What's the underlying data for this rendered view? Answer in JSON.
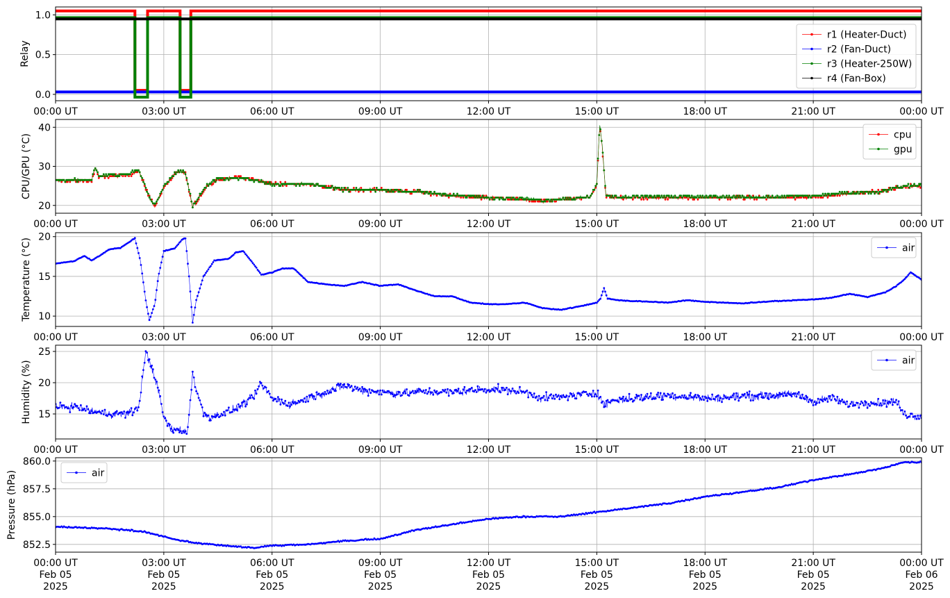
{
  "chart_data": [
    {
      "type": "line",
      "ylabel": "Relay",
      "ylim": [
        -0.08,
        1.1
      ],
      "yticks": [
        "0.0",
        "0.5",
        "1.0"
      ],
      "ytick_values": [
        0,
        0.5,
        1.0
      ],
      "xticks": [
        "00:00 UT",
        "03:00 UT",
        "06:00 UT",
        "09:00 UT",
        "12:00 UT",
        "15:00 UT",
        "18:00 UT",
        "21:00 UT",
        "00:00 UT"
      ],
      "grid": true,
      "legend_position": "upper-right",
      "series": [
        {
          "name": "r1 (Heater-Duct)",
          "color": "#ff0000",
          "offset": 0.05,
          "segments": [
            [
              0,
              1
            ],
            [
              2.2,
              1
            ],
            [
              2.2,
              0
            ],
            [
              2.55,
              0
            ],
            [
              2.55,
              1
            ],
            [
              3.45,
              1
            ],
            [
              3.45,
              0
            ],
            [
              3.75,
              0
            ],
            [
              3.75,
              1
            ],
            [
              24,
              1
            ]
          ]
        },
        {
          "name": "r2 (Fan-Duct)",
          "color": "#0000ff",
          "offset": 0.03,
          "segments": [
            [
              0,
              0
            ],
            [
              24,
              0
            ]
          ]
        },
        {
          "name": "r3 (Heater-250W)",
          "color": "#008000",
          "offset": -0.035,
          "segments": [
            [
              0,
              1
            ],
            [
              2.2,
              1
            ],
            [
              2.2,
              0
            ],
            [
              2.55,
              0
            ],
            [
              2.55,
              1
            ],
            [
              3.45,
              1
            ],
            [
              3.45,
              0
            ],
            [
              3.75,
              0
            ],
            [
              3.75,
              1
            ],
            [
              24,
              1
            ]
          ]
        },
        {
          "name": "r4 (Fan-Box)",
          "color": "#000000",
          "offset": -0.05,
          "segments": [
            [
              0,
              1
            ],
            [
              24,
              1
            ]
          ]
        }
      ]
    },
    {
      "type": "line",
      "ylabel": "CPU/GPU (°C)",
      "ylim": [
        18,
        42
      ],
      "yticks": [
        "20",
        "30",
        "40"
      ],
      "ytick_values": [
        20,
        30,
        40
      ],
      "xticks": [
        "00:00 UT",
        "03:00 UT",
        "06:00 UT",
        "09:00 UT",
        "12:00 UT",
        "15:00 UT",
        "18:00 UT",
        "21:00 UT",
        "00:00 UT"
      ],
      "grid": true,
      "legend_position": "upper-right",
      "series": [
        {
          "name": "cpu",
          "color": "#ff0000",
          "noise": 0.5,
          "x": [
            0,
            1.0,
            1.1,
            1.2,
            2.0,
            2.3,
            2.6,
            2.75,
            3.0,
            3.3,
            3.5,
            3.6,
            3.8,
            4.2,
            4.5,
            5.0,
            5.5,
            6.0,
            6.5,
            7.0,
            8.0,
            9.0,
            10.0,
            11.0,
            12.0,
            13.0,
            13.5,
            14.0,
            14.8,
            15.0,
            15.08,
            15.15,
            15.25,
            15.4,
            16.0,
            18.0,
            20.0,
            21.0,
            22.0,
            22.8,
            23.5,
            24.0
          ],
          "y": [
            26.3,
            26.3,
            29.5,
            27.2,
            27.8,
            28.9,
            22.0,
            19.8,
            24.5,
            28.0,
            28.8,
            28.0,
            19.5,
            25.0,
            26.5,
            27.2,
            26.7,
            25.5,
            25.5,
            25.5,
            24.0,
            24.0,
            23.5,
            22.5,
            22.0,
            21.5,
            21.0,
            21.5,
            22.0,
            25.0,
            40.5,
            35.0,
            22.5,
            22.0,
            22.0,
            22.0,
            22.0,
            22.2,
            23.0,
            23.5,
            24.8,
            25.0
          ]
        },
        {
          "name": "gpu",
          "color": "#008000",
          "noise": 0.4,
          "x": [
            0,
            1.0,
            1.1,
            1.2,
            2.0,
            2.3,
            2.6,
            2.75,
            3.0,
            3.3,
            3.5,
            3.6,
            3.8,
            4.2,
            4.5,
            5.0,
            5.5,
            6.0,
            6.5,
            7.0,
            8.0,
            9.0,
            10.0,
            11.0,
            12.0,
            13.0,
            13.5,
            14.0,
            14.8,
            15.0,
            15.08,
            15.15,
            15.25,
            15.4,
            16.0,
            18.0,
            20.0,
            21.0,
            22.0,
            22.8,
            23.5,
            24.0
          ],
          "y": [
            26.5,
            26.5,
            29.8,
            27.5,
            28.0,
            29.1,
            22.3,
            20.0,
            24.8,
            28.2,
            29.0,
            28.3,
            19.7,
            25.3,
            26.8,
            27.0,
            26.5,
            25.3,
            25.5,
            25.5,
            24.0,
            24.0,
            23.5,
            22.6,
            22.0,
            21.8,
            21.3,
            21.6,
            22.2,
            25.3,
            40.8,
            35.5,
            22.7,
            22.2,
            22.2,
            22.2,
            22.2,
            22.4,
            23.2,
            23.5,
            25.0,
            25.2
          ]
        }
      ]
    },
    {
      "type": "line",
      "ylabel": "Temperature (°C)",
      "ylim": [
        8.7,
        20.5
      ],
      "yticks": [
        "10",
        "15",
        "20"
      ],
      "ytick_values": [
        10,
        15,
        20
      ],
      "xticks": [
        "00:00 UT",
        "03:00 UT",
        "06:00 UT",
        "09:00 UT",
        "12:00 UT",
        "15:00 UT",
        "18:00 UT",
        "21:00 UT",
        "00:00 UT"
      ],
      "grid": true,
      "legend_position": "upper-right",
      "series": [
        {
          "name": "air",
          "color": "#0000ff",
          "noise": 0.05,
          "x": [
            0,
            0.3,
            0.5,
            0.8,
            1.0,
            1.5,
            1.8,
            2.2,
            2.35,
            2.5,
            2.6,
            2.75,
            2.85,
            3.0,
            3.3,
            3.5,
            3.6,
            3.7,
            3.8,
            3.9,
            4.1,
            4.4,
            4.8,
            5.0,
            5.2,
            5.5,
            5.7,
            6.0,
            6.3,
            6.6,
            7.0,
            7.5,
            8.0,
            8.5,
            9.0,
            9.5,
            10.0,
            10.5,
            11.0,
            11.5,
            12.0,
            12.5,
            13.0,
            13.5,
            14.0,
            14.5,
            15.0,
            15.1,
            15.2,
            15.3,
            15.6,
            16.0,
            17.0,
            17.5,
            18.0,
            19.0,
            20.0,
            21.0,
            21.5,
            22.0,
            22.5,
            23.0,
            23.3,
            23.5,
            23.7,
            24.0
          ],
          "y": [
            16.6,
            16.8,
            16.9,
            17.6,
            17.0,
            18.4,
            18.6,
            19.8,
            17.0,
            12.0,
            9.5,
            11.5,
            15.0,
            18.2,
            18.5,
            19.6,
            19.8,
            15.0,
            9.2,
            12.0,
            15.0,
            17.0,
            17.2,
            18.0,
            18.2,
            16.5,
            15.2,
            15.5,
            16.0,
            16.0,
            14.3,
            14.0,
            13.8,
            14.3,
            13.8,
            14.0,
            13.2,
            12.5,
            12.5,
            11.7,
            11.5,
            11.5,
            11.7,
            11.0,
            10.8,
            11.2,
            11.7,
            12.2,
            13.5,
            12.2,
            12.0,
            11.9,
            11.7,
            12.0,
            11.8,
            11.6,
            11.9,
            12.1,
            12.3,
            12.8,
            12.4,
            13.0,
            13.8,
            14.5,
            15.5,
            14.6
          ]
        }
      ]
    },
    {
      "type": "line",
      "ylabel": "Humidity (%)",
      "ylim": [
        11,
        26
      ],
      "yticks": [
        "15",
        "20",
        "25"
      ],
      "ytick_values": [
        15,
        20,
        25
      ],
      "xticks": [
        "00:00 UT",
        "03:00 UT",
        "06:00 UT",
        "09:00 UT",
        "12:00 UT",
        "15:00 UT",
        "18:00 UT",
        "21:00 UT",
        "00:00 UT"
      ],
      "grid": true,
      "legend_position": "upper-right",
      "series": [
        {
          "name": "air",
          "color": "#0000ff",
          "noise": 0.8,
          "x": [
            0,
            0.5,
            1.0,
            1.5,
            2.0,
            2.3,
            2.5,
            2.6,
            2.8,
            3.0,
            3.2,
            3.5,
            3.65,
            3.8,
            3.9,
            4.1,
            4.3,
            4.6,
            5.0,
            5.5,
            5.7,
            6.0,
            6.5,
            7.0,
            7.5,
            8.0,
            8.5,
            9.0,
            9.5,
            10.0,
            11.0,
            12.0,
            13.0,
            13.5,
            14.0,
            14.5,
            15.0,
            15.2,
            15.5,
            16.0,
            17.0,
            18.0,
            19.0,
            20.0,
            20.5,
            21.0,
            21.5,
            22.0,
            22.5,
            23.0,
            23.3,
            23.5,
            23.7,
            24.0
          ],
          "y": [
            16.0,
            16.2,
            15.5,
            15.0,
            15.0,
            16.0,
            24.8,
            23.5,
            20.0,
            14.5,
            12.5,
            12.5,
            11.8,
            21.5,
            19.0,
            15.0,
            14.5,
            15.0,
            15.8,
            17.8,
            19.8,
            17.5,
            16.5,
            17.5,
            18.5,
            19.5,
            18.8,
            18.5,
            18.3,
            18.5,
            18.5,
            19.0,
            18.5,
            17.5,
            17.8,
            18.0,
            18.5,
            16.5,
            17.2,
            17.5,
            18.0,
            17.5,
            17.8,
            18.0,
            18.2,
            17.0,
            17.5,
            16.5,
            16.8,
            16.8,
            17.0,
            15.0,
            14.8,
            14.5
          ]
        }
      ]
    },
    {
      "type": "line",
      "ylabel": "Pressure (hPa)",
      "ylim": [
        851.8,
        860.3
      ],
      "yticks": [
        "852.5",
        "855.0",
        "857.5",
        "860.0"
      ],
      "ytick_values": [
        852.5,
        855.0,
        857.5,
        860.0
      ],
      "xticks": [
        "00:00 UT\nFeb 05\n2025",
        "03:00 UT\nFeb 05\n2025",
        "06:00 UT\nFeb 05\n2025",
        "09:00 UT\nFeb 05\n2025",
        "12:00 UT\nFeb 05\n2025",
        "15:00 UT\nFeb 05\n2025",
        "18:00 UT\nFeb 05\n2025",
        "21:00 UT\nFeb 05\n2025",
        "00:00 UT\nFeb 06\n2025"
      ],
      "grid": true,
      "legend_position": "upper-left",
      "series": [
        {
          "name": "air",
          "color": "#0000ff",
          "noise": 0.08,
          "x": [
            0,
            1.5,
            2.0,
            2.5,
            3.0,
            3.5,
            4.0,
            5.0,
            5.5,
            6.0,
            7.0,
            8.0,
            9.0,
            10.0,
            11.0,
            12.0,
            13.0,
            14.0,
            15.0,
            16.0,
            17.0,
            17.5,
            18.0,
            19.0,
            20.0,
            21.0,
            22.0,
            23.0,
            23.5,
            24.0
          ],
          "y": [
            854.1,
            853.9,
            853.8,
            853.6,
            853.2,
            852.8,
            852.6,
            852.3,
            852.2,
            852.4,
            852.5,
            852.8,
            853.0,
            853.8,
            854.3,
            854.8,
            855.0,
            855.0,
            855.4,
            855.8,
            856.2,
            856.5,
            856.8,
            857.2,
            857.6,
            858.3,
            858.8,
            859.4,
            859.9,
            859.9
          ]
        }
      ]
    }
  ]
}
